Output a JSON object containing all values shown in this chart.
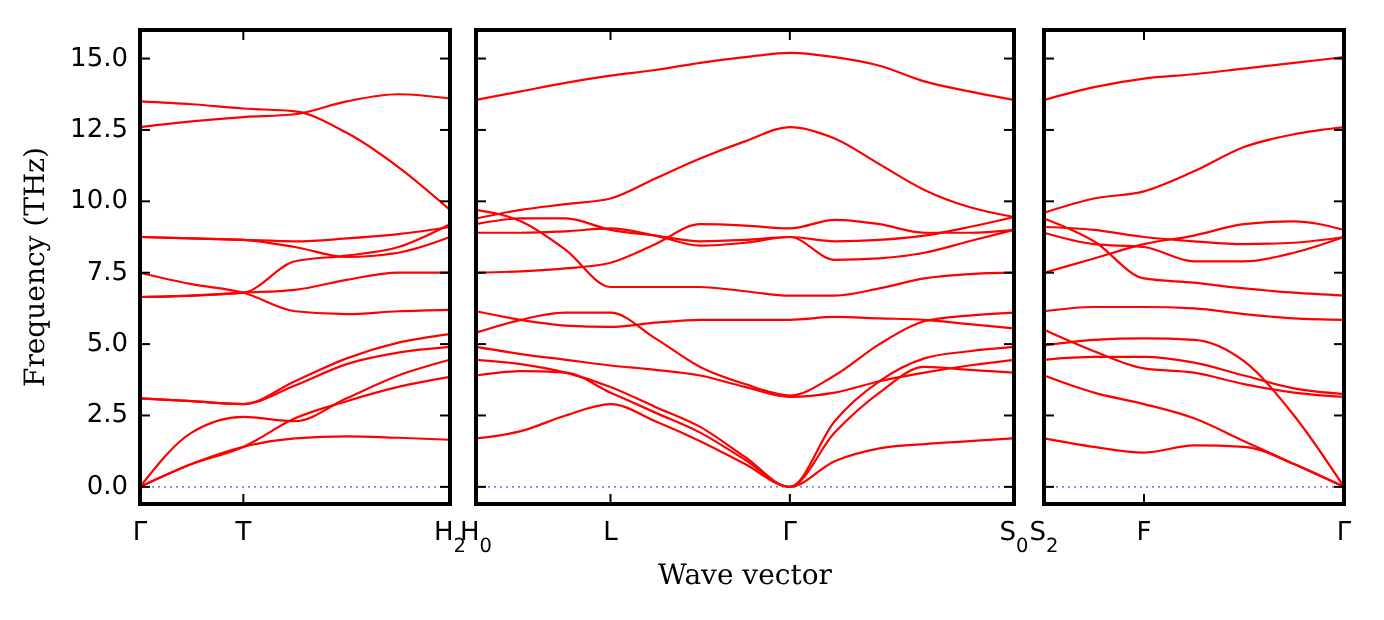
{
  "chart_data": [
    {
      "type": "line",
      "ylabel": "Frequency (THz)",
      "categories": [
        "Γ",
        null,
        "T",
        null,
        null,
        null,
        "H$_{2}$"
      ],
      "ylim": [
        -0.6,
        16
      ],
      "yticks": [
        {
          "value": 0,
          "label": "0.0"
        },
        {
          "value": 2.5,
          "label": "2.5"
        },
        {
          "value": 5,
          "label": "5.0"
        },
        {
          "value": 7.5,
          "label": "7.5"
        },
        {
          "value": 10,
          "label": "10.0"
        },
        {
          "value": 12.5,
          "label": "12.5"
        },
        {
          "value": 15,
          "label": "15.0"
        }
      ],
      "ref_lines": [
        {
          "axis": "y",
          "value": 0,
          "color": "#8080ff",
          "line_style": "dotted"
        }
      ],
      "series": [
        {
          "color": "#ff0000",
          "values": [
            0,
            0.8,
            1.4,
            1.7,
            1.77,
            1.72,
            1.65
          ]
        },
        {
          "color": "#ff0000",
          "values": [
            0,
            0.8,
            1.4,
            2.4,
            3.0,
            3.5,
            3.85
          ]
        },
        {
          "color": "#ff0000",
          "values": [
            0,
            1.9,
            2.45,
            2.3,
            3.1,
            3.9,
            4.45
          ]
        },
        {
          "color": "#ff0000",
          "values": [
            3.1,
            3.0,
            2.9,
            3.7,
            4.5,
            5.05,
            5.35
          ]
        },
        {
          "color": "#ff0000",
          "values": [
            3.1,
            3.0,
            2.9,
            3.55,
            4.3,
            4.7,
            4.9
          ]
        },
        {
          "color": "#ff0000",
          "values": [
            7.5,
            7.1,
            6.8,
            6.15,
            6.05,
            6.15,
            6.2
          ]
        },
        {
          "color": "#ff0000",
          "values": [
            6.65,
            6.7,
            6.8,
            6.9,
            7.25,
            7.5,
            7.5
          ]
        },
        {
          "color": "#ff0000",
          "values": [
            6.65,
            6.7,
            6.8,
            7.9,
            8.1,
            8.4,
            9.2
          ]
        },
        {
          "color": "#ff0000",
          "values": [
            8.75,
            8.7,
            8.65,
            8.6,
            8.7,
            8.85,
            9.1
          ]
        },
        {
          "color": "#ff0000",
          "values": [
            8.75,
            8.7,
            8.65,
            8.4,
            8.05,
            8.2,
            8.75
          ]
        },
        {
          "color": "#ff0000",
          "values": [
            13.5,
            13.4,
            13.25,
            13.15,
            12.4,
            11.2,
            9.7
          ]
        },
        {
          "color": "#ff0000",
          "values": [
            12.6,
            12.8,
            12.95,
            13.05,
            13.5,
            13.75,
            13.6
          ]
        }
      ]
    },
    {
      "type": "line",
      "xlabel": "Wave vector",
      "categories": [
        "H$_{0}$",
        null,
        null,
        "L",
        null,
        null,
        null,
        "Γ",
        null,
        null,
        null,
        null,
        "S$_{0}$"
      ],
      "ylim": [
        -0.6,
        16
      ],
      "tick_labels": "x",
      "yticks": [
        {
          "value": 0,
          "label": null
        },
        {
          "value": 2.5,
          "label": null
        },
        {
          "value": 5,
          "label": null
        },
        {
          "value": 7.5,
          "label": null
        },
        {
          "value": 10,
          "label": null
        },
        {
          "value": 12.5,
          "label": null
        },
        {
          "value": 15,
          "label": null
        }
      ],
      "ref_lines": [
        {
          "axis": "y",
          "value": 0,
          "color": "#8080ff",
          "line_style": "dotted"
        }
      ],
      "series": [
        {
          "color": "#ff0000",
          "values": [
            13.55,
            13.85,
            14.15,
            14.4,
            14.6,
            14.85,
            15.05,
            15.2,
            15.05,
            14.75,
            14.2,
            13.85,
            13.55
          ]
        },
        {
          "color": "#ff0000",
          "values": [
            9.4,
            9.7,
            9.9,
            10.1,
            10.8,
            11.5,
            12.1,
            12.6,
            12.2,
            11.3,
            10.4,
            9.8,
            9.45
          ]
        },
        {
          "color": "#ff0000",
          "values": [
            9.7,
            9.3,
            8.3,
            7.0,
            7.0,
            7.0,
            6.85,
            6.7,
            6.7,
            6.95,
            7.3,
            7.45,
            7.5
          ]
        },
        {
          "color": "#ff0000",
          "values": [
            9.2,
            9.4,
            9.4,
            9.0,
            8.8,
            8.6,
            8.65,
            8.75,
            8.6,
            8.65,
            8.8,
            9.1,
            9.45
          ]
        },
        {
          "color": "#ff0000",
          "values": [
            8.9,
            8.9,
            8.95,
            9.05,
            8.8,
            8.45,
            8.55,
            8.75,
            7.95,
            8.0,
            8.2,
            8.6,
            9.0
          ]
        },
        {
          "color": "#ff0000",
          "values": [
            7.5,
            7.55,
            7.65,
            7.85,
            8.5,
            9.2,
            9.15,
            9.05,
            9.35,
            9.2,
            8.9,
            8.9,
            9.0
          ]
        },
        {
          "color": "#ff0000",
          "values": [
            6.15,
            5.85,
            5.65,
            5.6,
            5.75,
            5.85,
            5.85,
            5.85,
            5.95,
            5.9,
            5.85,
            5.7,
            5.55
          ]
        },
        {
          "color": "#ff0000",
          "values": [
            5.4,
            5.85,
            6.1,
            6.1,
            5.2,
            4.2,
            3.6,
            3.2,
            3.9,
            5.0,
            5.8,
            6.0,
            6.1
          ]
        },
        {
          "color": "#ff0000",
          "values": [
            4.9,
            4.65,
            4.45,
            4.25,
            4.1,
            3.9,
            3.5,
            3.15,
            3.3,
            3.7,
            4.0,
            4.25,
            4.45
          ]
        },
        {
          "color": "#ff0000",
          "values": [
            4.45,
            4.3,
            4.0,
            3.5,
            2.8,
            2.1,
            1.05,
            0,
            2.3,
            3.7,
            4.5,
            4.75,
            4.9
          ]
        },
        {
          "color": "#ff0000",
          "values": [
            3.9,
            4.05,
            4.0,
            3.3,
            2.6,
            1.9,
            0.95,
            0,
            1.9,
            3.3,
            4.2,
            4.1,
            4.0
          ]
        },
        {
          "color": "#ff0000",
          "values": [
            1.7,
            1.95,
            2.5,
            2.9,
            2.3,
            1.6,
            0.8,
            0,
            0.9,
            1.35,
            1.5,
            1.6,
            1.7
          ]
        }
      ]
    },
    {
      "type": "line",
      "categories": [
        "S$_{2}$",
        null,
        "F",
        null,
        null,
        null,
        "Γ"
      ],
      "ylim": [
        -0.6,
        16
      ],
      "tick_labels": "x",
      "yticks": [
        {
          "value": 0,
          "label": null
        },
        {
          "value": 2.5,
          "label": null
        },
        {
          "value": 5,
          "label": null
        },
        {
          "value": 7.5,
          "label": null
        },
        {
          "value": 10,
          "label": null
        },
        {
          "value": 12.5,
          "label": null
        },
        {
          "value": 15,
          "label": null
        }
      ],
      "ref_lines": [
        {
          "axis": "y",
          "value": 0,
          "color": "#8080ff",
          "line_style": "dotted"
        }
      ],
      "series": [
        {
          "color": "#ff0000",
          "values": [
            13.55,
            14.0,
            14.3,
            14.45,
            14.65,
            14.85,
            15.05
          ]
        },
        {
          "color": "#ff0000",
          "values": [
            9.6,
            10.1,
            10.35,
            11.05,
            11.9,
            12.35,
            12.6
          ]
        },
        {
          "color": "#ff0000",
          "values": [
            9.4,
            8.6,
            7.3,
            7.15,
            6.95,
            6.8,
            6.7
          ]
        },
        {
          "color": "#ff0000",
          "values": [
            9.1,
            9.0,
            8.75,
            8.6,
            8.5,
            8.55,
            8.75
          ]
        },
        {
          "color": "#ff0000",
          "values": [
            8.9,
            8.5,
            8.4,
            7.9,
            7.9,
            8.2,
            8.75
          ]
        },
        {
          "color": "#ff0000",
          "values": [
            7.5,
            8.0,
            8.5,
            8.8,
            9.2,
            9.3,
            9.0
          ]
        },
        {
          "color": "#ff0000",
          "values": [
            6.15,
            6.3,
            6.3,
            6.25,
            6.05,
            5.9,
            5.85
          ]
        },
        {
          "color": "#ff0000",
          "values": [
            5.5,
            4.75,
            4.15,
            4.0,
            3.6,
            3.3,
            3.15
          ]
        },
        {
          "color": "#ff0000",
          "values": [
            4.95,
            5.15,
            5.2,
            5.15,
            4.4,
            2.5,
            0
          ]
        },
        {
          "color": "#ff0000",
          "values": [
            4.45,
            4.55,
            4.55,
            4.35,
            3.9,
            3.45,
            3.25
          ]
        },
        {
          "color": "#ff0000",
          "values": [
            3.9,
            3.3,
            2.9,
            2.4,
            1.6,
            0.8,
            0
          ]
        },
        {
          "color": "#ff0000",
          "values": [
            1.7,
            1.4,
            1.2,
            1.45,
            1.4,
            0.8,
            0
          ]
        }
      ]
    }
  ]
}
